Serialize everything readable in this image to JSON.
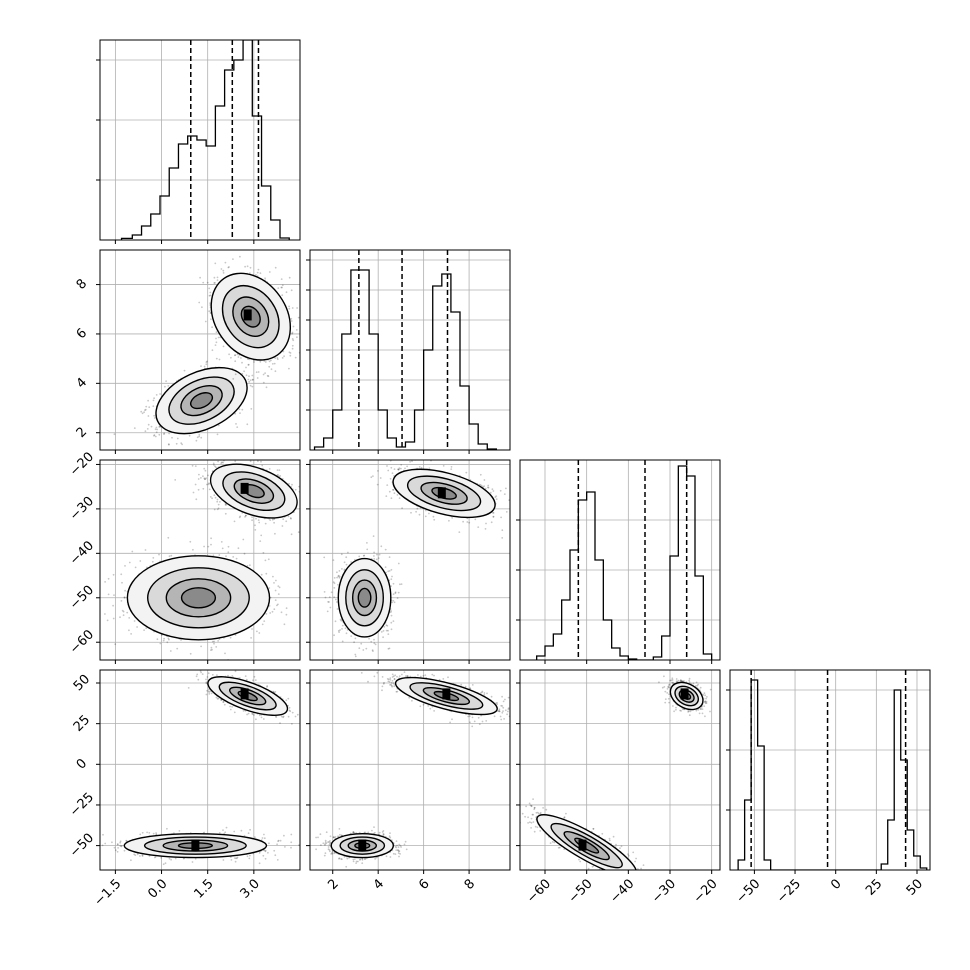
{
  "chart_data": {
    "type": "corner",
    "panels": [
      {
        "row": 0,
        "col": 0,
        "kind": "hist",
        "xlim": [
          -2.0,
          4.5
        ],
        "ylim": [
          0,
          1.0
        ],
        "yticks": [
          0.3,
          0.6,
          0.9
        ],
        "xticks": [
          -1.5,
          0.0,
          1.5,
          3.0
        ],
        "quantiles": [
          0.95,
          2.3,
          3.15
        ],
        "edges": [
          -1.3,
          -0.95,
          -0.65,
          -0.35,
          -0.05,
          0.25,
          0.55,
          0.85,
          1.15,
          1.45,
          1.75,
          2.05,
          2.35,
          2.65,
          2.95,
          3.25,
          3.55,
          3.85,
          4.15
        ],
        "counts": [
          0.008,
          0.025,
          0.07,
          0.13,
          0.22,
          0.36,
          0.48,
          0.52,
          0.5,
          0.47,
          0.67,
          0.85,
          0.9,
          1.0,
          0.62,
          0.27,
          0.1,
          0.01
        ]
      },
      {
        "row": 1,
        "col": 0,
        "kind": "scatter",
        "xlim": [
          -2.0,
          4.5
        ],
        "ylim": [
          1.3,
          9.4
        ],
        "yticks": [
          2,
          4,
          6,
          8
        ],
        "xticks": [
          -1.5,
          0.0,
          1.5,
          3.0
        ],
        "blobs": [
          {
            "cx": 1.3,
            "cy": 3.3,
            "sx": 0.75,
            "sy": 0.55,
            "rot": 25
          },
          {
            "cx": 2.9,
            "cy": 6.7,
            "sx": 0.55,
            "sy": 0.9,
            "rot": 35
          }
        ],
        "peaks": [
          {
            "x": 2.8,
            "y": 6.75
          }
        ]
      },
      {
        "row": 1,
        "col": 1,
        "kind": "hist",
        "xlim": [
          1.0,
          9.8
        ],
        "ylim": [
          0,
          1.0
        ],
        "yticks": [
          0.2,
          0.35,
          0.5,
          0.65,
          0.8,
          0.95
        ],
        "xticks": [
          2,
          4,
          6,
          8
        ],
        "quantiles": [
          3.15,
          5.05,
          7.05
        ],
        "edges": [
          1.2,
          1.6,
          2.0,
          2.4,
          2.8,
          3.2,
          3.6,
          4.0,
          4.4,
          4.8,
          5.2,
          5.6,
          6.0,
          6.4,
          6.8,
          7.2,
          7.6,
          8.0,
          8.4,
          8.8,
          9.2
        ],
        "counts": [
          0.015,
          0.06,
          0.2,
          0.58,
          0.9,
          0.9,
          0.58,
          0.2,
          0.06,
          0.015,
          0.04,
          0.2,
          0.5,
          0.82,
          0.88,
          0.69,
          0.32,
          0.13,
          0.03,
          0.005
        ]
      },
      {
        "row": 2,
        "col": 0,
        "kind": "scatter",
        "xlim": [
          -2.0,
          4.5
        ],
        "ylim": [
          -64,
          -19
        ],
        "yticks": [
          -60,
          -50,
          -40,
          -30,
          -20
        ],
        "xticks": [
          -1.5,
          0.0,
          1.5,
          3.0
        ],
        "blobs": [
          {
            "cx": 1.2,
            "cy": -50,
            "sx": 1.1,
            "sy": 4.5,
            "rot": 0
          },
          {
            "cx": 3.0,
            "cy": -26,
            "sx": 0.7,
            "sy": 2.5,
            "rot": -20
          }
        ],
        "peaks": [
          {
            "x": 2.7,
            "y": -25.5
          }
        ]
      },
      {
        "row": 2,
        "col": 1,
        "kind": "scatter",
        "xlim": [
          1.0,
          9.8
        ],
        "ylim": [
          -64,
          -19
        ],
        "yticks": [
          -60,
          -50,
          -40,
          -30,
          -20
        ],
        "xticks": [
          2,
          4,
          6,
          8
        ],
        "blobs": [
          {
            "cx": 3.4,
            "cy": -50,
            "sx": 0.55,
            "sy": 4.2,
            "rot": 0
          },
          {
            "cx": 6.9,
            "cy": -26.5,
            "sx": 1.1,
            "sy": 2.2,
            "rot": -15
          }
        ],
        "peaks": [
          {
            "x": 6.8,
            "y": -26.5
          }
        ]
      },
      {
        "row": 2,
        "col": 2,
        "kind": "hist",
        "xlim": [
          -66,
          -18
        ],
        "ylim": [
          0,
          1.0
        ],
        "yticks": [
          0.2,
          0.45,
          0.7
        ],
        "xticks": [
          -60,
          -50,
          -40,
          -30,
          -20
        ],
        "quantiles": [
          -52,
          -36,
          -26
        ],
        "edges": [
          -62,
          -60,
          -58,
          -56,
          -54,
          -52,
          -50,
          -48,
          -46,
          -44,
          -42,
          -40,
          -38,
          -36,
          -34,
          -32,
          -30,
          -28,
          -26,
          -24,
          -22,
          -20
        ],
        "counts": [
          0.02,
          0.07,
          0.13,
          0.3,
          0.55,
          0.8,
          0.84,
          0.5,
          0.2,
          0.06,
          0.02,
          0.005,
          0,
          0,
          0.015,
          0.12,
          0.52,
          0.97,
          0.92,
          0.42,
          0.03
        ]
      },
      {
        "row": 3,
        "col": 0,
        "kind": "scatter",
        "xlim": [
          -2.0,
          4.5
        ],
        "ylim": [
          -65,
          58
        ],
        "yticks": [
          -50,
          -25,
          0,
          25,
          50
        ],
        "xticks": [
          -1.5,
          0.0,
          1.5,
          3.0
        ],
        "blobs": [
          {
            "cx": 1.1,
            "cy": -50,
            "sx": 1.1,
            "sy": 3.5,
            "rot": 0
          },
          {
            "cx": 2.8,
            "cy": 42,
            "sx": 0.65,
            "sy": 4.0,
            "rot": -20
          }
        ],
        "peaks": [
          {
            "x": 2.7,
            "y": 43
          },
          {
            "x": 1.1,
            "y": -50
          }
        ]
      },
      {
        "row": 3,
        "col": 1,
        "kind": "scatter",
        "xlim": [
          1.0,
          9.8
        ],
        "ylim": [
          -65,
          58
        ],
        "yticks": [
          -50,
          -25,
          0,
          25,
          50
        ],
        "xticks": [
          2,
          4,
          6,
          8
        ],
        "blobs": [
          {
            "cx": 3.3,
            "cy": -50,
            "sx": 0.65,
            "sy": 3.5,
            "rot": 0
          },
          {
            "cx": 7.0,
            "cy": 42,
            "sx": 1.1,
            "sy": 3.8,
            "rot": -15
          }
        ],
        "peaks": [
          {
            "x": 7.0,
            "y": 43
          },
          {
            "x": 3.3,
            "y": -50
          }
        ]
      },
      {
        "row": 3,
        "col": 2,
        "kind": "scatter",
        "xlim": [
          -66,
          -18
        ],
        "ylim": [
          -65,
          58
        ],
        "yticks": [
          -50,
          -25,
          0,
          25,
          50
        ],
        "xticks": [
          -60,
          -50,
          -40,
          -30,
          -20
        ],
        "blobs": [
          {
            "cx": -50,
            "cy": -50,
            "sx": 6.5,
            "sy": 4.0,
            "rot": -30
          },
          {
            "cx": -26,
            "cy": 42,
            "sx": 2.0,
            "sy": 3.5,
            "rot": -30
          }
        ],
        "peaks": [
          {
            "x": -26.5,
            "y": 43
          },
          {
            "x": -51,
            "y": -50
          }
        ]
      },
      {
        "row": 3,
        "col": 3,
        "kind": "hist",
        "xlim": [
          -65,
          58
        ],
        "ylim": [
          0,
          1.0
        ],
        "yticks": [
          0.3,
          0.6,
          0.9
        ],
        "xticks": [
          -50,
          -25,
          0,
          25,
          50
        ],
        "quantiles": [
          -52,
          -5,
          43
        ],
        "edges": [
          -60,
          -56,
          -52,
          -48,
          -44,
          -40,
          -36,
          -32,
          -28,
          -24,
          -20,
          -16,
          -12,
          -8,
          -4,
          0,
          4,
          8,
          12,
          16,
          20,
          24,
          28,
          32,
          36,
          40,
          44,
          48,
          52,
          56
        ],
        "counts": [
          0.05,
          0.35,
          0.95,
          0.62,
          0.05,
          0,
          0,
          0,
          0,
          0,
          0,
          0,
          0,
          0,
          0,
          0,
          0,
          0,
          0,
          0,
          0,
          0,
          0.03,
          0.25,
          0.9,
          0.55,
          0.2,
          0.07,
          0.01
        ]
      }
    ]
  }
}
